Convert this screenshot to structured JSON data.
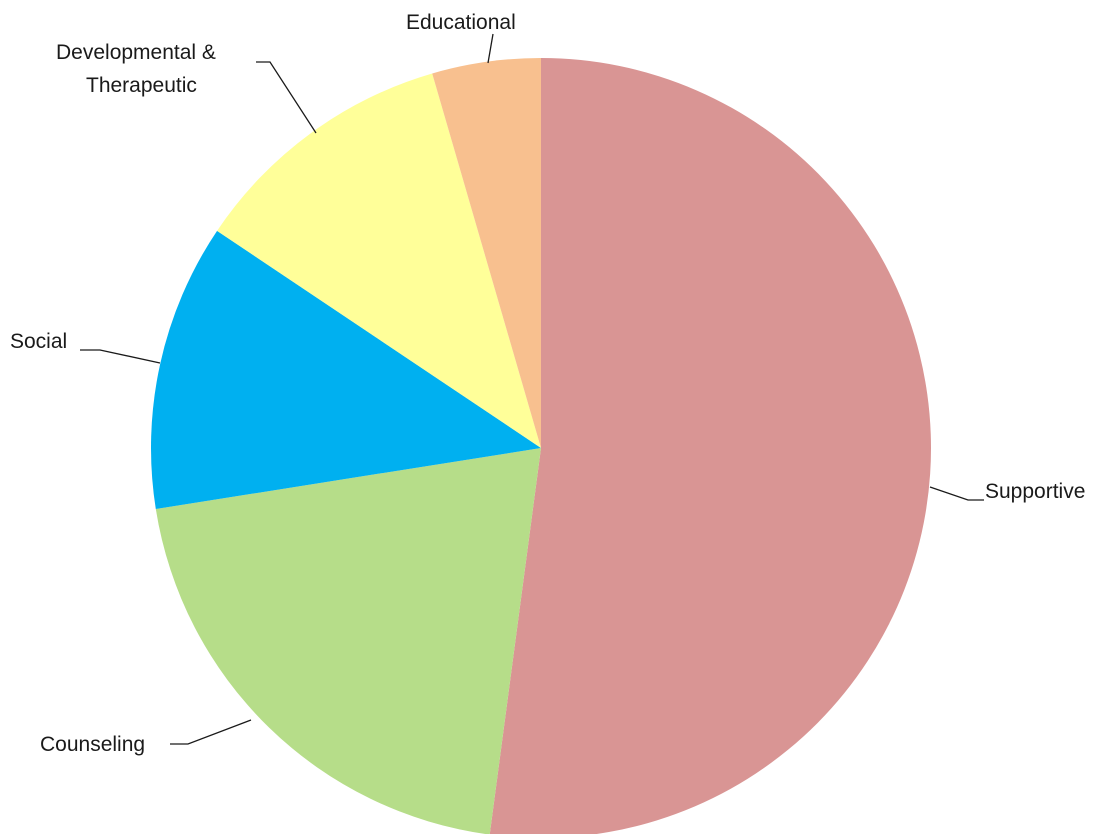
{
  "chart_data": {
    "type": "pie",
    "title": "",
    "start_angle_deg": 0,
    "direction": "clockwise",
    "slices": [
      {
        "label": "Supportive",
        "value": 52.1,
        "color": "#d99594"
      },
      {
        "label": "Counseling",
        "value": 20.4,
        "color": "#b6dd89"
      },
      {
        "label": "Social",
        "value": 11.9,
        "color": "#00b0f0"
      },
      {
        "label": "Developmental & Therapeutic",
        "label_lines": [
          "Developmental &",
          "Therapeutic"
        ],
        "value": 11.1,
        "color": "#ffff99"
      },
      {
        "label": "Educational",
        "value": 4.5,
        "color": "#f8c08f"
      }
    ],
    "legend": "none",
    "data_labels": "category names with leader lines"
  }
}
